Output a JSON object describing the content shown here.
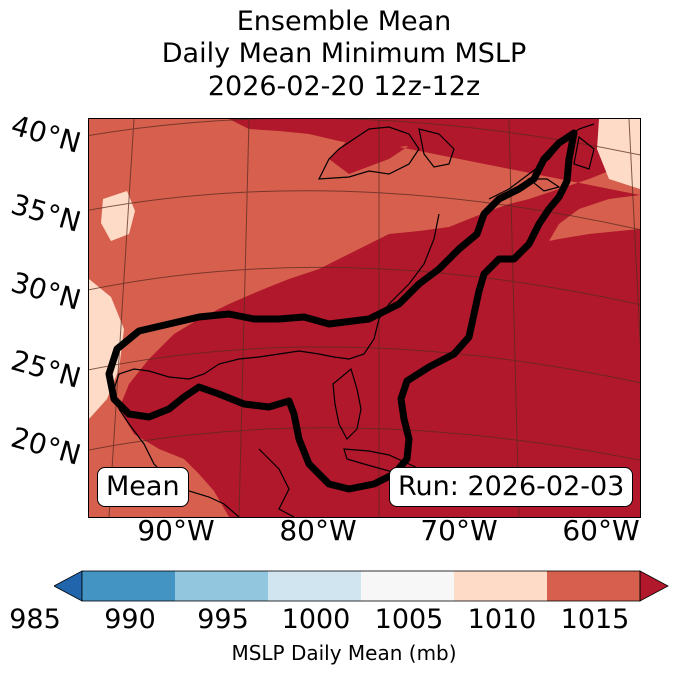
{
  "title": {
    "line1": "Ensemble Mean",
    "line2": "Daily Mean Minimum MSLP",
    "line3": "2026-02-20 12z-12z"
  },
  "map": {
    "latitude_labels": [
      "40°N",
      "35°N",
      "30°N",
      "25°N",
      "20°N"
    ],
    "longitude_labels": [
      "90°W",
      "80°W",
      "70°W",
      "60°W"
    ],
    "mean_box": "Mean",
    "run_box": "Run: 2026-02-03",
    "fill_colors": {
      "mslp_1010_1015": "#d6604d",
      "mslp_above_1015": "#b2182b",
      "mslp_1005_1010": "#fddbc7"
    },
    "contour_color": "#000000"
  },
  "colorbar": {
    "label": "MSLP Daily Mean (mb)",
    "ticks": [
      "985",
      "990",
      "995",
      "1000",
      "1005",
      "1010",
      "1015"
    ],
    "colors": [
      "#2166ac",
      "#4393c3",
      "#92c5de",
      "#d1e5f0",
      "#f7f7f7",
      "#fddbc7",
      "#d6604d",
      "#b2182b"
    ]
  }
}
